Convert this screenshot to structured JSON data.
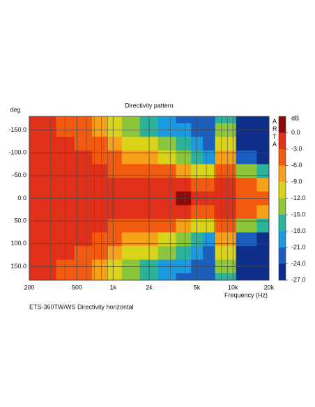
{
  "chart_data": {
    "type": "heatmap",
    "title": "Directivity pattern",
    "y_label": "deg",
    "x_label": "Frequency (Hz)",
    "footer": "ETS-360TW/WS  Directivity horizontal",
    "watermark": "ARTA",
    "colorbar_label": "dB",
    "x": [
      200,
      280,
      400,
      560,
      800,
      1000,
      1400,
      2000,
      2800,
      4000,
      5000,
      6300,
      8000,
      9000,
      12500,
      20000
    ],
    "y": [
      -180,
      -150,
      -120,
      -90,
      -60,
      -30,
      0,
      30,
      60,
      90,
      120,
      150,
      180
    ],
    "z": [
      [
        -1.5,
        -1.5,
        -4.5,
        -4.5,
        -7.5,
        -10.5,
        -13.5,
        -16.5,
        -19.5,
        -22.5,
        -22.5,
        -22.5,
        -16.5,
        -16.5,
        -25.5,
        -25.5
      ],
      [
        -1.5,
        -1.5,
        -4.5,
        -4.5,
        -7.5,
        -10.5,
        -13.5,
        -16.5,
        -19.5,
        -19.5,
        -22.5,
        -22.5,
        -13.5,
        -13.5,
        -25.5,
        -25.5
      ],
      [
        -1.5,
        -1.5,
        -1.5,
        -4.5,
        -4.5,
        -7.5,
        -10.5,
        -10.5,
        -13.5,
        -16.5,
        -19.5,
        -22.5,
        -10.5,
        -10.5,
        -25.5,
        -25.5
      ],
      [
        -1.5,
        -1.5,
        -1.5,
        -1.5,
        -4.5,
        -4.5,
        -7.5,
        -7.5,
        -10.5,
        -13.5,
        -16.5,
        -19.5,
        -7.5,
        -7.5,
        -22.5,
        -25.5
      ],
      [
        -1.5,
        -1.5,
        -1.5,
        -1.5,
        -1.5,
        -4.5,
        -4.5,
        -4.5,
        -4.5,
        -7.5,
        -10.5,
        -10.5,
        -4.5,
        -4.5,
        -13.5,
        -16.5
      ],
      [
        -1.5,
        -1.5,
        -1.5,
        -1.5,
        -1.5,
        -1.5,
        -1.5,
        -1.5,
        -1.5,
        -1.5,
        -4.5,
        -4.5,
        -1.5,
        -1.5,
        -4.5,
        -7.5
      ],
      [
        -1.5,
        -1.5,
        -1.5,
        -1.5,
        -1.5,
        -1.5,
        -1.5,
        -1.5,
        -1.5,
        1.5,
        -1.5,
        -1.5,
        -1.5,
        -1.5,
        -4.5,
        -4.5
      ],
      [
        -1.5,
        -1.5,
        -1.5,
        -1.5,
        -1.5,
        -1.5,
        -1.5,
        -1.5,
        -1.5,
        -1.5,
        -4.5,
        -4.5,
        -1.5,
        -1.5,
        -4.5,
        -7.5
      ],
      [
        -1.5,
        -1.5,
        -1.5,
        -1.5,
        -1.5,
        -4.5,
        -4.5,
        -4.5,
        -4.5,
        -7.5,
        -10.5,
        -10.5,
        -4.5,
        -4.5,
        -13.5,
        -16.5
      ],
      [
        -1.5,
        -1.5,
        -1.5,
        -1.5,
        -4.5,
        -4.5,
        -7.5,
        -7.5,
        -10.5,
        -13.5,
        -16.5,
        -19.5,
        -7.5,
        -7.5,
        -22.5,
        -25.5
      ],
      [
        -1.5,
        -1.5,
        -1.5,
        -4.5,
        -4.5,
        -7.5,
        -10.5,
        -10.5,
        -13.5,
        -16.5,
        -19.5,
        -22.5,
        -10.5,
        -10.5,
        -25.5,
        -25.5
      ],
      [
        -1.5,
        -1.5,
        -4.5,
        -4.5,
        -7.5,
        -10.5,
        -13.5,
        -16.5,
        -19.5,
        -19.5,
        -22.5,
        -22.5,
        -13.5,
        -13.5,
        -25.5,
        -25.5
      ],
      [
        -1.5,
        -1.5,
        -4.5,
        -4.5,
        -7.5,
        -10.5,
        -13.5,
        -16.5,
        -19.5,
        -22.5,
        -22.5,
        -22.5,
        -16.5,
        -16.5,
        -25.5,
        -25.5
      ]
    ],
    "x_log": true,
    "xlim": [
      200,
      20000
    ],
    "xticks": [
      200,
      500,
      {
        "value": 1000,
        "label": "1k"
      },
      {
        "value": 2000,
        "label": "2k"
      },
      {
        "value": 5000,
        "label": "5k"
      },
      {
        "value": 10000,
        "label": "10k"
      },
      {
        "value": 20000,
        "label": "20k"
      }
    ],
    "xminor": [
      300,
      400,
      600,
      700,
      800,
      900,
      3000,
      4000,
      6000,
      7000,
      8000,
      9000
    ],
    "ylim": [
      -180,
      180
    ],
    "yticks": [
      {
        "value": -150,
        "label": "-150.0"
      },
      {
        "value": -100,
        "label": "-100.0"
      },
      {
        "value": -50,
        "label": "-50.0"
      },
      {
        "value": 0,
        "label": "0.0"
      },
      {
        "value": 50,
        "label": "50.0"
      },
      {
        "value": 100,
        "label": "100.0"
      },
      {
        "value": 150,
        "label": "150.0"
      }
    ],
    "grid": true,
    "zlim": [
      -27,
      3
    ],
    "zticks": [
      {
        "value": 0,
        "label": "0.0"
      },
      {
        "value": -3,
        "label": "-3.0"
      },
      {
        "value": -6,
        "label": "-6.0"
      },
      {
        "value": -9,
        "label": "-9.0"
      },
      {
        "value": -12,
        "label": "-12.0"
      },
      {
        "value": -15,
        "label": "-15.0"
      },
      {
        "value": -18,
        "label": "-18.0"
      },
      {
        "value": -21,
        "label": "-21.0"
      },
      {
        "value": -24,
        "label": "-24.0"
      },
      {
        "value": -27,
        "label": "-27.0"
      }
    ],
    "colors": [
      "#8b0a0a",
      "#e0301a",
      "#f25a10",
      "#f7a01a",
      "#d9d41a",
      "#8cc63a",
      "#2ab39a",
      "#1a9ae0",
      "#1a5fbf",
      "#0f2f8a"
    ]
  }
}
